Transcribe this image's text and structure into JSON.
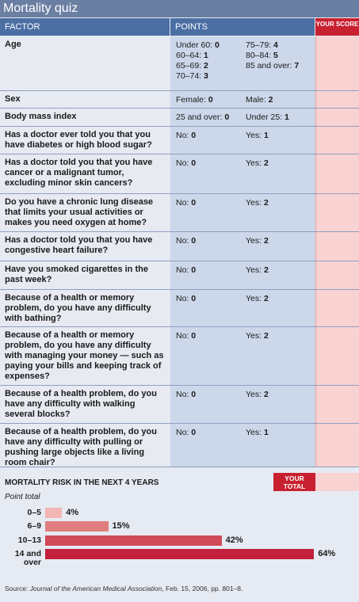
{
  "title": "Mortality quiz",
  "table": {
    "headers": [
      "FACTOR",
      "POINTS",
      "YOUR SCORE"
    ],
    "rows": [
      {
        "factor": "Age",
        "options": [
          [
            {
              "label": "Under 60:",
              "points": 0
            },
            {
              "label": "60–64:",
              "points": 1
            },
            {
              "label": "65–69:",
              "points": 2
            },
            {
              "label": "70–74:",
              "points": 3
            }
          ],
          [
            {
              "label": "75–79:",
              "points": 4
            },
            {
              "label": "80–84:",
              "points": 5
            },
            {
              "label": "85 and over:",
              "points": 7
            }
          ]
        ]
      },
      {
        "factor": "Sex",
        "options": [
          [
            {
              "label": "Female:",
              "points": 0
            }
          ],
          [
            {
              "label": "Male:",
              "points": 2
            }
          ]
        ]
      },
      {
        "factor": "Body mass index",
        "options": [
          [
            {
              "label": "25 and over:",
              "points": 0
            }
          ],
          [
            {
              "label": "Under 25:",
              "points": 1
            }
          ]
        ]
      },
      {
        "factor": "Has a doctor ever told you that you have diabetes or high blood sugar?",
        "options": [
          [
            {
              "label": "No:",
              "points": 0
            }
          ],
          [
            {
              "label": "Yes:",
              "points": 1
            }
          ]
        ]
      },
      {
        "factor": "Has a doctor told you that you have cancer or a malignant tumor, excluding minor skin cancers?",
        "options": [
          [
            {
              "label": "No:",
              "points": 0
            }
          ],
          [
            {
              "label": "Yes:",
              "points": 2
            }
          ]
        ]
      },
      {
        "factor": "Do you have a chronic lung disease that limits your usual activities or makes you need oxygen at home?",
        "options": [
          [
            {
              "label": "No:",
              "points": 0
            }
          ],
          [
            {
              "label": "Yes:",
              "points": 2
            }
          ]
        ]
      },
      {
        "factor": "Has a doctor told you that you have congestive heart failure?",
        "options": [
          [
            {
              "label": "No:",
              "points": 0
            }
          ],
          [
            {
              "label": "Yes:",
              "points": 2
            }
          ]
        ]
      },
      {
        "factor": "Have you smoked cigarettes in the past week?",
        "options": [
          [
            {
              "label": "No:",
              "points": 0
            }
          ],
          [
            {
              "label": "Yes:",
              "points": 2
            }
          ]
        ]
      },
      {
        "factor": "Because of a health or memory problem, do you have any difficulty with bathing?",
        "options": [
          [
            {
              "label": "No:",
              "points": 0
            }
          ],
          [
            {
              "label": "Yes:",
              "points": 2
            }
          ]
        ]
      },
      {
        "factor": "Because of a health or memory problem, do you have any difficulty with managing your money — such as paying your bills and keeping track of expenses?",
        "options": [
          [
            {
              "label": "No:",
              "points": 0
            }
          ],
          [
            {
              "label": "Yes:",
              "points": 2
            }
          ]
        ]
      },
      {
        "factor": "Because of a health problem, do you have any difficulty with walking several blocks?",
        "options": [
          [
            {
              "label": "No:",
              "points": 0
            }
          ],
          [
            {
              "label": "Yes:",
              "points": 2
            }
          ]
        ]
      },
      {
        "factor": "Because of a health problem, do you have any difficulty with pulling or pushing large objects like a living room chair?",
        "options": [
          [
            {
              "label": "No:",
              "points": 0
            }
          ],
          [
            {
              "label": "Yes:",
              "points": 1
            }
          ]
        ]
      }
    ]
  },
  "risk": {
    "heading": "MORTALITY RISK IN THE NEXT 4 YEARS",
    "total_label": "YOUR TOTAL",
    "axis_label": "Point total",
    "chart": {
      "type": "bar",
      "categories": [
        "0–5",
        "6–9",
        "10–13",
        "14 and over"
      ],
      "values": [
        4,
        15,
        42,
        64
      ],
      "value_labels": [
        "4%",
        "15%",
        "42%",
        "64%"
      ],
      "colors": [
        "#f2b6b4",
        "#e07d7f",
        "#d14a58",
        "#c21f3c"
      ]
    }
  },
  "source": {
    "prefix": "Source:",
    "journal": "Journal of the American Medical Association",
    "suffix": ", Feb. 15, 2006, pp. 801–8."
  }
}
